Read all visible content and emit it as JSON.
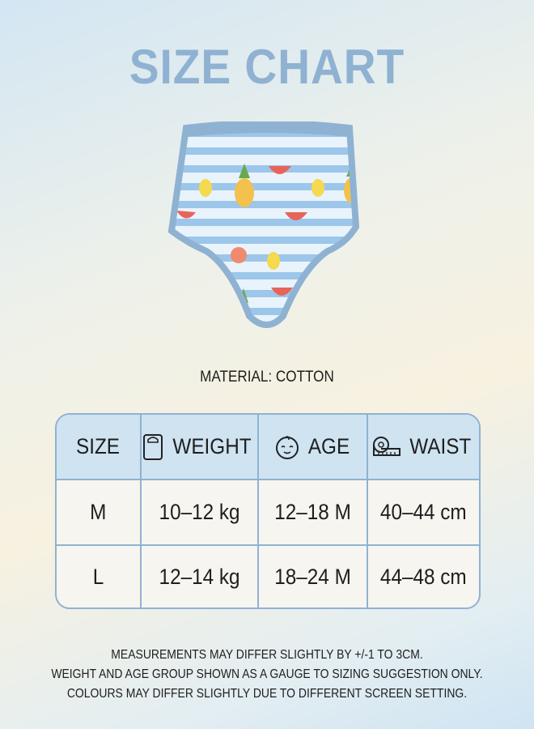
{
  "title": "SIZE CHART",
  "material": "MATERIAL: COTTON",
  "table": {
    "headers": [
      {
        "label": "SIZE",
        "icon": ""
      },
      {
        "label": "WEIGHT",
        "icon": "scale-icon"
      },
      {
        "label": "AGE",
        "icon": "baby-face-icon"
      },
      {
        "label": "WAIST",
        "icon": "tape-measure-icon"
      }
    ],
    "rows": [
      [
        "M",
        "10–12 kg",
        "12–18 M",
        "40–44 cm"
      ],
      [
        "L",
        "12–14 kg",
        "18–24 M",
        "44–48 cm"
      ]
    ]
  },
  "notes": [
    "MEASUREMENTS MAY DIFFER SLIGHTLY BY +/-1 TO 3CM.",
    "WEIGHT AND AGE GROUP SHOWN AS A GAUGE TO SIZING SUGGESTION ONLY.",
    "COLOURS MAY DIFFER SLIGHTLY DUE TO DIFFERENT SCREEN SETTING."
  ],
  "colors": {
    "accent": "#8fb2d2",
    "header_bg": "#cfe3f1",
    "stripe": "#9cc6ea"
  }
}
